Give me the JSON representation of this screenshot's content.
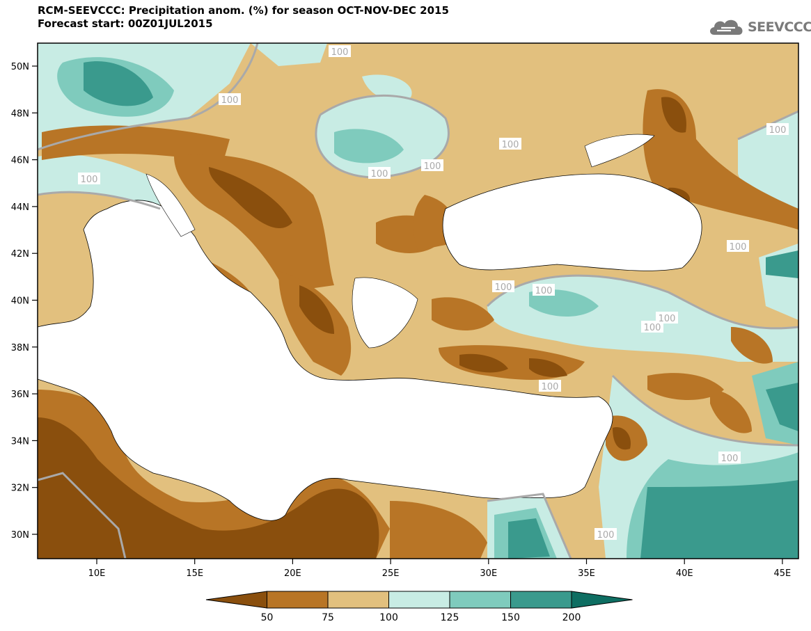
{
  "title": {
    "line1": "RCM-SEEVCCC: Precipitation anom. (%) for season OCT-NOV-DEC 2015",
    "line2": "Forecast start: 00Z01JUL2015"
  },
  "logo": {
    "text": "SEEVCCC",
    "icon": "cloud-icon"
  },
  "map": {
    "lat_labels": [
      "50N",
      "48N",
      "46N",
      "44N",
      "42N",
      "40N",
      "38N",
      "36N",
      "34N",
      "32N",
      "30N"
    ],
    "lon_labels": [
      "10E",
      "15E",
      "20E",
      "25E",
      "30E",
      "35E",
      "40E",
      "45E"
    ],
    "contour_label": "100",
    "contour_label_count": 15
  },
  "colorbar": {
    "tick_labels": [
      "50",
      "75",
      "100",
      "125",
      "150",
      "200"
    ],
    "colors": [
      "#8a4f0d",
      "#b87526",
      "#e2c07e",
      "#c8ece4",
      "#7fcbbd",
      "#3a9a8d",
      "#0e6e62"
    ]
  },
  "colors": {
    "sea": "#ffffff",
    "dry_strong": "#8a4f0d",
    "dry": "#b87526",
    "dry_light": "#e2c07e",
    "wet_light": "#c8ece4",
    "wet": "#7fcbbd",
    "wet_strong": "#3a9a8d",
    "contour_100": "#a9a9a9",
    "logo": "#7a7a7a"
  }
}
